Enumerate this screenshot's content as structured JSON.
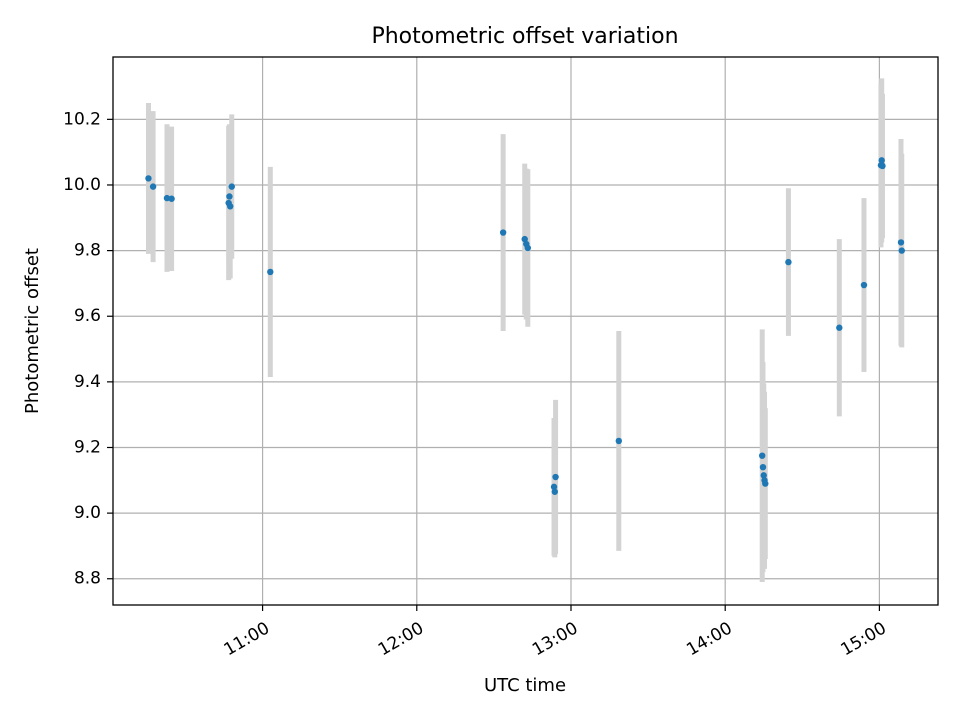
{
  "chart_data": {
    "type": "scatter",
    "title": "Photometric offset variation",
    "xlabel": "UTC time",
    "ylabel": "Photometric offset",
    "grid": true,
    "xlim_hours": [
      10.03,
      15.38
    ],
    "ylim": [
      8.72,
      10.39
    ],
    "x_ticks": [
      {
        "value": 11.0,
        "label": "11:00"
      },
      {
        "value": 12.0,
        "label": "12:00"
      },
      {
        "value": 13.0,
        "label": "13:00"
      },
      {
        "value": 14.0,
        "label": "14:00"
      },
      {
        "value": 15.0,
        "label": "15:00"
      }
    ],
    "y_ticks": [
      {
        "value": 8.8,
        "label": "8.8"
      },
      {
        "value": 9.0,
        "label": "9.0"
      },
      {
        "value": 9.2,
        "label": "9.2"
      },
      {
        "value": 9.4,
        "label": "9.4"
      },
      {
        "value": 9.6,
        "label": "9.6"
      },
      {
        "value": 9.8,
        "label": "9.8"
      },
      {
        "value": 10.0,
        "label": "10.0"
      },
      {
        "value": 10.2,
        "label": "10.2"
      }
    ],
    "marker_color": "#1f77b4",
    "errorbar_color": "#d3d3d3",
    "points": [
      {
        "x": 10.26,
        "y": 10.02,
        "yerr": 0.23
      },
      {
        "x": 10.29,
        "y": 9.995,
        "yerr": 0.23
      },
      {
        "x": 10.38,
        "y": 9.96,
        "yerr": 0.225
      },
      {
        "x": 10.41,
        "y": 9.958,
        "yerr": 0.22
      },
      {
        "x": 10.78,
        "y": 9.945,
        "yerr": 0.235
      },
      {
        "x": 10.785,
        "y": 9.965,
        "yerr": 0.22
      },
      {
        "x": 10.79,
        "y": 9.935,
        "yerr": 0.22
      },
      {
        "x": 10.8,
        "y": 9.995,
        "yerr": 0.22
      },
      {
        "x": 11.05,
        "y": 9.735,
        "yerr": 0.32
      },
      {
        "x": 12.56,
        "y": 9.855,
        "yerr": 0.3
      },
      {
        "x": 12.7,
        "y": 9.835,
        "yerr": 0.23
      },
      {
        "x": 12.71,
        "y": 9.82,
        "yerr": 0.23
      },
      {
        "x": 12.72,
        "y": 9.808,
        "yerr": 0.24
      },
      {
        "x": 12.89,
        "y": 9.08,
        "yerr": 0.21
      },
      {
        "x": 12.895,
        "y": 9.065,
        "yerr": 0.2
      },
      {
        "x": 12.9,
        "y": 9.11,
        "yerr": 0.235
      },
      {
        "x": 13.31,
        "y": 9.22,
        "yerr": 0.335
      },
      {
        "x": 14.24,
        "y": 9.175,
        "yerr": 0.385
      },
      {
        "x": 14.245,
        "y": 9.14,
        "yerr": 0.32
      },
      {
        "x": 14.25,
        "y": 9.115,
        "yerr": 0.28
      },
      {
        "x": 14.255,
        "y": 9.1,
        "yerr": 0.27
      },
      {
        "x": 14.26,
        "y": 9.09,
        "yerr": 0.23
      },
      {
        "x": 14.41,
        "y": 9.765,
        "yerr": 0.225
      },
      {
        "x": 14.74,
        "y": 9.565,
        "yerr": 0.27
      },
      {
        "x": 14.9,
        "y": 9.695,
        "yerr": 0.265
      },
      {
        "x": 15.01,
        "y": 10.06,
        "yerr": 0.25
      },
      {
        "x": 15.015,
        "y": 10.075,
        "yerr": 0.25
      },
      {
        "x": 15.02,
        "y": 10.058,
        "yerr": 0.22
      },
      {
        "x": 15.14,
        "y": 9.825,
        "yerr": 0.315
      },
      {
        "x": 15.145,
        "y": 9.8,
        "yerr": 0.295
      }
    ]
  }
}
